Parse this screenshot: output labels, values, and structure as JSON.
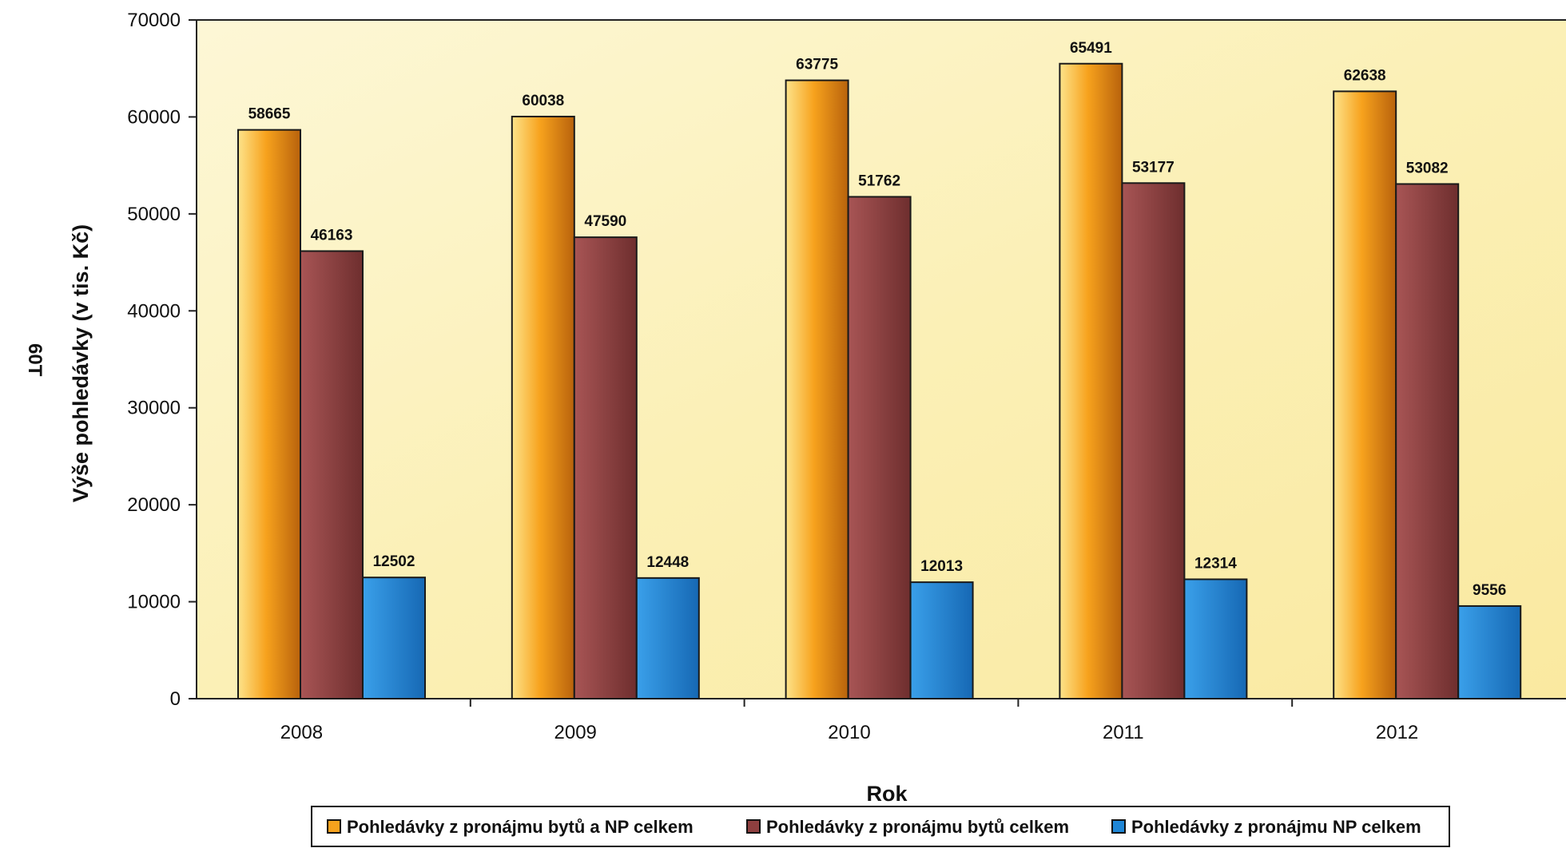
{
  "page_mark": "60T",
  "colors": {
    "series_1": "#f7a21d",
    "series_2": "#8d3f3f",
    "series_3": "#1f86d6",
    "plot_background": "#fbf0b6",
    "axis": "#222222"
  },
  "chart_data": {
    "type": "bar",
    "title": "",
    "xlabel": "Rok",
    "ylabel": "Výše pohledávky (v tis. Kč)",
    "ylim": [
      0,
      70000
    ],
    "yticks": [
      "0",
      "10000",
      "20000",
      "30000",
      "40000",
      "50000",
      "60000",
      "70000"
    ],
    "categories": [
      "2008",
      "2009",
      "2010",
      "2011",
      "2012"
    ],
    "series": [
      {
        "name": "Pohledávky z pronájmu bytů a NP celkem",
        "values": [
          58665,
          60038,
          63775,
          65491,
          62638
        ]
      },
      {
        "name": "Pohledávky z pronájmu bytů celkem",
        "values": [
          46163,
          47590,
          51762,
          53177,
          53082
        ]
      },
      {
        "name": "Pohledávky z pronájmu NP celkem",
        "values": [
          12502,
          12448,
          12013,
          12314,
          9556
        ]
      }
    ],
    "legend_position": "bottom",
    "grid": false,
    "data_labels": true
  }
}
